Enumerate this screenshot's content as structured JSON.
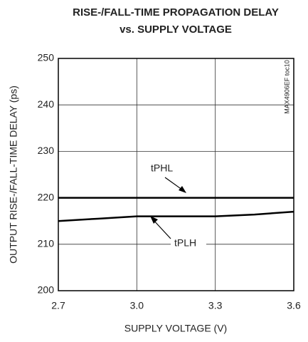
{
  "chart_data": {
    "type": "line",
    "title": [
      "RISE-/FALL-TIME PROPAGATION DELAY",
      "vs. SUPPLY VOLTAGE"
    ],
    "x_label": "SUPPLY VOLTAGE (V)",
    "y_label": "OUTPUT RISE-/FALL-TIME DELAY (ps)",
    "side_note": "MAX4906EF toc10",
    "x": [
      2.7,
      2.85,
      3.0,
      3.15,
      3.3,
      3.45,
      3.6
    ],
    "series": [
      {
        "name": "tPHL",
        "color": "#000000",
        "values": [
          220,
          220,
          220,
          220,
          220,
          220,
          220
        ]
      },
      {
        "name": "tPLH",
        "color": "#000000",
        "values": [
          215,
          215.5,
          216,
          216,
          216,
          216.4,
          217
        ]
      }
    ],
    "xlim": [
      2.7,
      3.6
    ],
    "xticks": [
      2.7,
      {
        "value": 3,
        "label": "3.0"
      },
      3.3,
      3.6
    ],
    "ylim": [
      200,
      250
    ],
    "yticks": [
      200,
      210,
      220,
      230,
      240,
      250
    ],
    "grid": true
  }
}
